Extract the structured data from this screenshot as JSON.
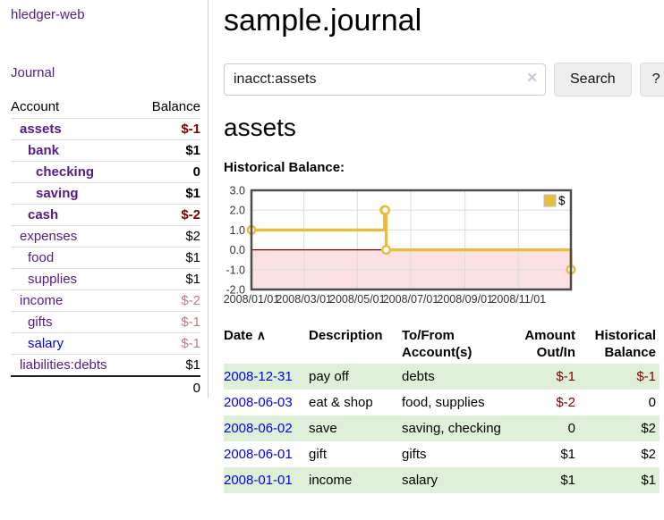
{
  "app": {
    "brand": "hledger-web",
    "nav": {
      "journal": "Journal"
    }
  },
  "sidebar": {
    "columns": {
      "account": "Account",
      "balance": "Balance"
    },
    "accounts": [
      {
        "name": "assets",
        "indent": 1,
        "balance": "$-1",
        "bold": true,
        "balance_style": "negative"
      },
      {
        "name": "bank",
        "indent": 2,
        "balance": "$1",
        "bold": true,
        "balance_style": "normal"
      },
      {
        "name": "checking",
        "indent": 3,
        "balance": "0",
        "bold": true,
        "balance_style": "normal"
      },
      {
        "name": "saving",
        "indent": 3,
        "balance": "$1",
        "bold": true,
        "balance_style": "normal"
      },
      {
        "name": "cash",
        "indent": 2,
        "balance": "$-2",
        "bold": true,
        "balance_style": "negative"
      },
      {
        "name": "expenses",
        "indent": 1,
        "balance": "$2",
        "bold": false,
        "balance_style": "normal"
      },
      {
        "name": "food",
        "indent": 2,
        "balance": "$1",
        "bold": false,
        "balance_style": "normal"
      },
      {
        "name": "supplies",
        "indent": 2,
        "balance": "$1",
        "bold": false,
        "balance_style": "normal"
      },
      {
        "name": "income",
        "indent": 1,
        "balance": "$-2",
        "bold": false,
        "balance_style": "negative-dim"
      },
      {
        "name": "gifts",
        "indent": 2,
        "balance": "$-1",
        "bold": false,
        "balance_style": "negative-dim"
      },
      {
        "name": "salary",
        "indent": 2,
        "balance": "$-1",
        "bold": false,
        "balance_style": "negative-dim",
        "link_style": "blue"
      },
      {
        "name": "liabilities:debts",
        "indent": 1,
        "balance": "$1",
        "bold": false,
        "balance_style": "normal"
      }
    ],
    "total": "0"
  },
  "main": {
    "title": "sample.journal",
    "search": {
      "value": "inacct:assets",
      "clear_icon": "✕",
      "search_button": "Search",
      "help_button": "?"
    },
    "account_heading": "assets",
    "chart_heading": "Historical Balance:"
  },
  "chart_data": {
    "type": "line",
    "step": true,
    "title": "Historical Balance",
    "x_type": "date",
    "xlim": [
      "2008-01-01",
      "2008-12-31"
    ],
    "ylim": [
      -2,
      3
    ],
    "y_ticks": [
      3.0,
      2.0,
      1.0,
      0.0,
      -1.0,
      -2.0
    ],
    "x_ticks": [
      {
        "value": "2008-01-01",
        "label": "2008/01/01"
      },
      {
        "value": "2008-03-01",
        "label": "2008/03/01"
      },
      {
        "value": "2008-05-01",
        "label": "2008/05/01"
      },
      {
        "value": "2008-07-01",
        "label": "2008/07/01"
      },
      {
        "value": "2008-09-01",
        "label": "2008/09/01"
      },
      {
        "value": "2008-11-01",
        "label": "2008/11/01"
      }
    ],
    "series": [
      {
        "name": "$",
        "color": "#e9bc3d",
        "points": [
          [
            "2008-01-01",
            1
          ],
          [
            "2008-06-01",
            2
          ],
          [
            "2008-06-02",
            2
          ],
          [
            "2008-06-03",
            0
          ],
          [
            "2008-12-31",
            -1
          ]
        ]
      }
    ],
    "legend_position": "top-right",
    "grid": true,
    "colors": {
      "negative_region": "#fbe1e1",
      "zero_line": "#8b0000",
      "grid": "#dcdcdc",
      "border": "#4d4d4d",
      "marker_fill": "#ffffff"
    }
  },
  "register": {
    "columns": [
      "Date",
      "Description",
      "To/From Account(s)",
      "Amount Out/In",
      "Historical Balance"
    ],
    "sort_icon": "∧",
    "rows": [
      {
        "date": "2008-12-31",
        "description": "pay off",
        "accounts": "debts",
        "amount": "$-1",
        "balance": "$-1"
      },
      {
        "date": "2008-06-03",
        "description": "eat & shop",
        "accounts": "food, supplies",
        "amount": "$-2",
        "balance": "0"
      },
      {
        "date": "2008-06-02",
        "description": "save",
        "accounts": "saving, checking",
        "amount": "0",
        "balance": "$2"
      },
      {
        "date": "2008-06-01",
        "description": "gift",
        "accounts": "gifts",
        "amount": "$1",
        "balance": "$2"
      },
      {
        "date": "2008-01-01",
        "description": "income",
        "accounts": "salary",
        "amount": "$1",
        "balance": "$1"
      }
    ]
  }
}
